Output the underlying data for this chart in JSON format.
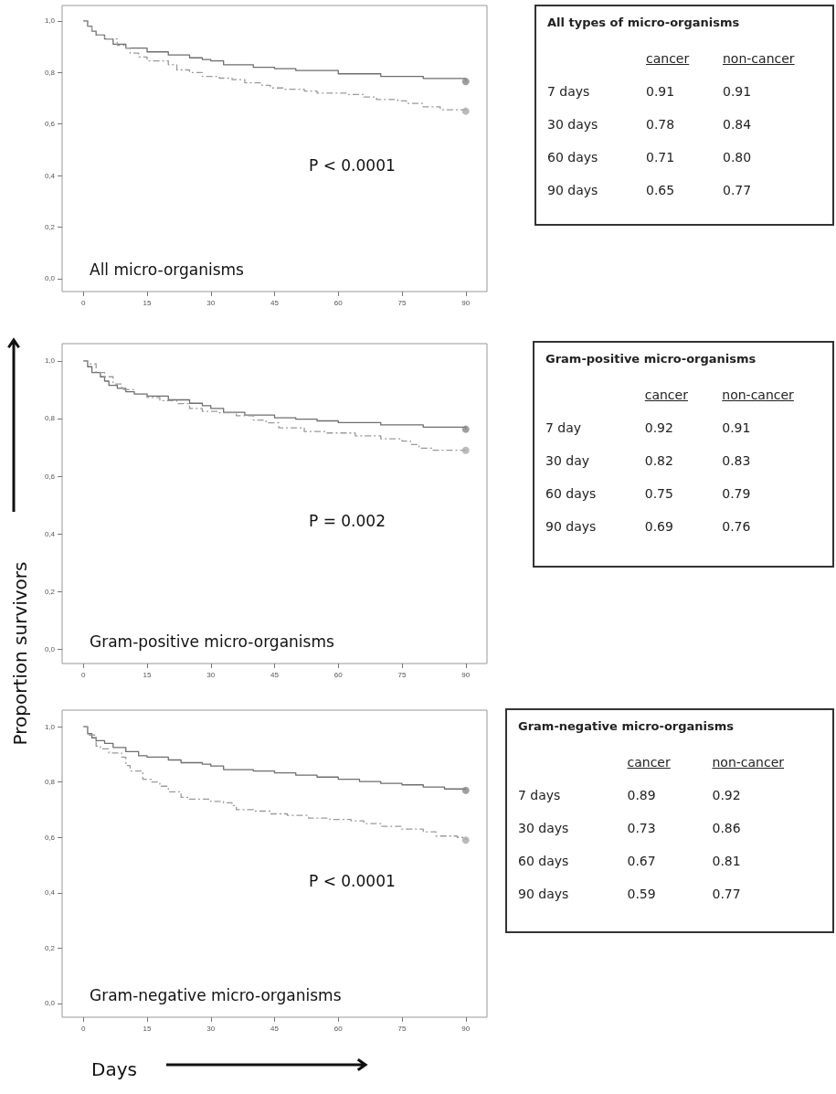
{
  "chart_data": [
    {
      "type": "step",
      "xlim": [
        -5,
        95
      ],
      "xticks": [
        0,
        15,
        30,
        45,
        60,
        75,
        90
      ],
      "ylim": [
        -0.05,
        1.06
      ],
      "yticks": [
        {
          "value": 0,
          "label": "0,0"
        },
        {
          "value": 0.2,
          "label": "0,2"
        },
        {
          "value": 0.4,
          "label": "0,4"
        },
        {
          "value": 0.6,
          "label": "0,6"
        },
        {
          "value": 0.8,
          "label": "0,8"
        },
        {
          "value": 1,
          "label": "1,0"
        }
      ],
      "grid": false,
      "annotations": [
        "All micro-organisms",
        "P < 0.0001"
      ],
      "series": [
        {
          "color": "#6e6e6e",
          "line_style": "solid",
          "marker": "none",
          "x": [
            0,
            1,
            2,
            3,
            5,
            7,
            10,
            15,
            20,
            25,
            28,
            30,
            33,
            40,
            45,
            50,
            60,
            70,
            80,
            90
          ],
          "values": [
            1,
            0.98,
            0.96,
            0.945,
            0.93,
            0.91,
            0.895,
            0.88,
            0.868,
            0.857,
            0.85,
            0.845,
            0.83,
            0.82,
            0.815,
            0.808,
            0.795,
            0.785,
            0.777,
            0.765
          ]
        },
        {
          "color": "#9a9a9a",
          "line_style": "dashed",
          "marker": "none",
          "x": [
            0,
            1,
            2,
            3,
            5,
            8,
            10,
            11,
            13,
            15,
            20,
            22,
            25,
            28,
            32,
            35,
            38,
            42,
            44,
            47,
            52,
            55,
            62,
            66,
            69,
            74,
            76,
            80,
            84,
            90
          ],
          "values": [
            1,
            0.98,
            0.96,
            0.945,
            0.93,
            0.905,
            0.895,
            0.875,
            0.86,
            0.845,
            0.83,
            0.81,
            0.8,
            0.785,
            0.778,
            0.772,
            0.76,
            0.75,
            0.74,
            0.735,
            0.728,
            0.72,
            0.715,
            0.705,
            0.695,
            0.69,
            0.68,
            0.667,
            0.655,
            0.65
          ]
        },
        {
          "type": "scatter",
          "marker": "circle",
          "x": [
            90,
            90
          ],
          "values": [
            0.765,
            0.65
          ],
          "colors": [
            "#888888",
            "#aaaaaa"
          ]
        }
      ]
    },
    {
      "type": "other",
      "title": "All types of micro-organisms",
      "annotations": [
        "cancer",
        "non-cancer",
        "7 days",
        "0.91",
        "0.91",
        "30 days",
        "0.78",
        "0.84",
        "60 days",
        "0.71",
        "0.80",
        "90 days",
        "0.65",
        "0.77"
      ]
    },
    {
      "type": "step",
      "ylabel": "Proportion survivors",
      "xlim": [
        -5,
        95
      ],
      "xticks": [
        0,
        15,
        30,
        45,
        60,
        75,
        90
      ],
      "ylim": [
        -0.05,
        1.06
      ],
      "yticks": [
        {
          "value": 0,
          "label": "0,0"
        },
        {
          "value": 0.2,
          "label": "0,2"
        },
        {
          "value": 0.4,
          "label": "0,4"
        },
        {
          "value": 0.6,
          "label": "0,6"
        },
        {
          "value": 0.8,
          "label": "0,8"
        },
        {
          "value": 1,
          "label": "1,0"
        }
      ],
      "grid": false,
      "annotations": [
        "Gram-positive micro-organisms",
        "P = 0.002"
      ],
      "series": [
        {
          "color": "#6e6e6e",
          "line_style": "solid",
          "marker": "none",
          "x": [
            0,
            1,
            2,
            4,
            5,
            6,
            8,
            10,
            12,
            15,
            20,
            25,
            28,
            30,
            33,
            38,
            45,
            50,
            55,
            60,
            70,
            80,
            90
          ],
          "values": [
            1,
            0.98,
            0.96,
            0.945,
            0.93,
            0.915,
            0.905,
            0.893,
            0.885,
            0.878,
            0.865,
            0.853,
            0.845,
            0.835,
            0.822,
            0.812,
            0.803,
            0.798,
            0.792,
            0.786,
            0.778,
            0.77,
            0.763
          ]
        },
        {
          "color": "#9a9a9a",
          "line_style": "dashed",
          "marker": "none",
          "x": [
            0,
            1,
            3,
            5,
            7,
            9,
            12,
            15,
            18,
            22,
            25,
            28,
            32,
            36,
            40,
            43,
            46,
            52,
            57,
            64,
            70,
            75,
            77,
            79,
            82,
            90
          ],
          "values": [
            1,
            0.99,
            0.96,
            0.945,
            0.92,
            0.9,
            0.885,
            0.873,
            0.862,
            0.852,
            0.835,
            0.825,
            0.82,
            0.81,
            0.795,
            0.785,
            0.768,
            0.755,
            0.75,
            0.74,
            0.73,
            0.722,
            0.71,
            0.697,
            0.69,
            0.69
          ]
        },
        {
          "type": "scatter",
          "marker": "circle",
          "x": [
            90,
            90
          ],
          "values": [
            0.763,
            0.69
          ],
          "colors": [
            "#888888",
            "#aaaaaa"
          ]
        }
      ]
    },
    {
      "type": "other",
      "title": "Gram-positive micro-organisms",
      "annotations": [
        "cancer",
        "non-cancer",
        "7 day",
        "0.92",
        "0.91",
        "30 day",
        "0.82",
        "0.83",
        "60 days",
        "0.75",
        "0.79",
        "90 days",
        "0.69",
        "0.76"
      ]
    },
    {
      "type": "step",
      "xlabel": "Days",
      "xlim": [
        -5,
        95
      ],
      "xticks": [
        0,
        15,
        30,
        45,
        60,
        75,
        90
      ],
      "ylim": [
        -0.05,
        1.06
      ],
      "yticks": [
        {
          "value": 0,
          "label": "0,0"
        },
        {
          "value": 0.2,
          "label": "0,2"
        },
        {
          "value": 0.4,
          "label": "0,4"
        },
        {
          "value": 0.6,
          "label": "0,6"
        },
        {
          "value": 0.8,
          "label": "0,8"
        },
        {
          "value": 1,
          "label": "1,0"
        }
      ],
      "grid": false,
      "annotations": [
        "Gram-negative micro-organisms",
        "P < 0.0001"
      ],
      "series": [
        {
          "color": "#6e6e6e",
          "line_style": "solid",
          "marker": "none",
          "x": [
            0,
            1,
            2,
            3,
            5,
            7,
            10,
            13,
            15,
            20,
            23,
            28,
            30,
            33,
            40,
            45,
            50,
            55,
            60,
            65,
            70,
            75,
            80,
            85,
            90
          ],
          "values": [
            1,
            0.975,
            0.96,
            0.95,
            0.94,
            0.925,
            0.91,
            0.895,
            0.89,
            0.88,
            0.87,
            0.865,
            0.858,
            0.845,
            0.84,
            0.833,
            0.825,
            0.818,
            0.81,
            0.802,
            0.795,
            0.79,
            0.782,
            0.775,
            0.77
          ]
        },
        {
          "color": "#9a9a9a",
          "line_style": "dashed",
          "marker": "none",
          "x": [
            0,
            1,
            3,
            4,
            6,
            9,
            10,
            11,
            14,
            16,
            18,
            20,
            23,
            25,
            30,
            33,
            35,
            36,
            40,
            44,
            48,
            53,
            58,
            63,
            66,
            70,
            75,
            80,
            83,
            88,
            90
          ],
          "values": [
            1,
            0.97,
            0.93,
            0.92,
            0.905,
            0.89,
            0.86,
            0.84,
            0.81,
            0.8,
            0.785,
            0.765,
            0.745,
            0.738,
            0.73,
            0.725,
            0.715,
            0.7,
            0.695,
            0.685,
            0.68,
            0.67,
            0.665,
            0.66,
            0.65,
            0.64,
            0.63,
            0.62,
            0.605,
            0.6,
            0.59
          ]
        },
        {
          "type": "scatter",
          "marker": "circle",
          "x": [
            90,
            90
          ],
          "values": [
            0.77,
            0.59
          ],
          "colors": [
            "#888888",
            "#aaaaaa"
          ]
        }
      ]
    },
    {
      "type": "other",
      "title": "Gram-negative micro-organisms",
      "annotations": [
        "cancer",
        "non-cancer",
        "7 days",
        "0.89",
        "0.92",
        "30 days",
        "0.73",
        "0.86",
        "60 days",
        "0.67",
        "0.81",
        "90 days",
        "0.59",
        "0.77"
      ]
    }
  ]
}
